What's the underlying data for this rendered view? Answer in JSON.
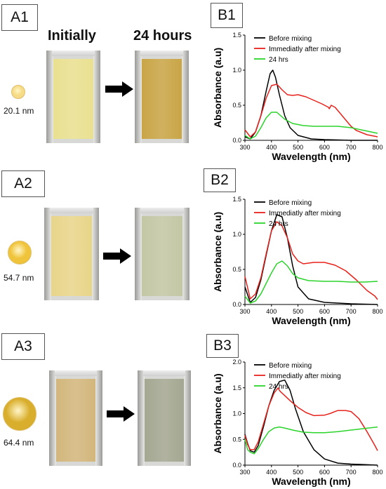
{
  "headers": {
    "initially": "Initially",
    "after": "24 hours"
  },
  "rows": [
    {
      "panel_a": "A1",
      "size": "20.1 nm",
      "initial_color": "#e9e090",
      "final_color": "#c9a546",
      "dot_color": "#f6dc86"
    },
    {
      "panel_a": "A2",
      "size": "54.7 nm",
      "initial_color": "#e8d58a",
      "final_color": "#c3c7a4",
      "dot_color": "#f0c43a"
    },
    {
      "panel_a": "A3",
      "size": "64.4 nm",
      "initial_color": "#d2b67c",
      "final_color": "#a4a791",
      "dot_color": "#d9ae2c"
    }
  ],
  "chart_data": [
    {
      "type": "line",
      "panel": "B1",
      "xlabel": "Wavelength (nm)",
      "ylabel": "Absorbance (a.u)",
      "xlim": [
        300,
        800
      ],
      "ylim": [
        0,
        1.5
      ],
      "xticks": [
        "300",
        "400",
        "500",
        "600",
        "700",
        "800"
      ],
      "yticks": [
        "0.0",
        "0.5",
        "1.0",
        "1.5"
      ],
      "legend_position": "top-right",
      "series": [
        {
          "name": "Before mixing",
          "color": "#000000",
          "x": [
            300,
            320,
            340,
            360,
            380,
            395,
            405,
            415,
            430,
            450,
            470,
            500,
            550,
            600,
            700,
            800
          ],
          "y": [
            0.05,
            0.02,
            0.12,
            0.35,
            0.7,
            0.95,
            1.0,
            0.9,
            0.65,
            0.35,
            0.18,
            0.07,
            0.02,
            0.01,
            0.0,
            0.0
          ]
        },
        {
          "name": "Immediatly after mixing",
          "color": "#e8211b",
          "x": [
            300,
            320,
            340,
            360,
            380,
            400,
            420,
            440,
            460,
            480,
            500,
            530,
            560,
            590,
            615,
            618,
            625,
            640,
            660,
            680,
            700,
            720,
            760,
            800
          ],
          "y": [
            0.15,
            0.05,
            0.12,
            0.35,
            0.6,
            0.78,
            0.8,
            0.72,
            0.65,
            0.64,
            0.65,
            0.62,
            0.57,
            0.52,
            0.47,
            0.45,
            0.5,
            0.47,
            0.38,
            0.29,
            0.2,
            0.14,
            0.08,
            0.05
          ]
        },
        {
          "name": "24 hrs",
          "color": "#2ad42a",
          "x": [
            300,
            320,
            340,
            360,
            380,
            400,
            420,
            450,
            480,
            520,
            560,
            600,
            650,
            700,
            750,
            800
          ],
          "y": [
            0.07,
            0.02,
            0.06,
            0.18,
            0.32,
            0.4,
            0.4,
            0.3,
            0.24,
            0.21,
            0.2,
            0.2,
            0.2,
            0.18,
            0.14,
            0.1
          ]
        }
      ]
    },
    {
      "type": "line",
      "panel": "B2",
      "xlabel": "Wavelength (nm)",
      "ylabel": "Absorbance (a.u)",
      "xlim": [
        300,
        800
      ],
      "ylim": [
        0,
        1.5
      ],
      "xticks": [
        "300",
        "400",
        "500",
        "600",
        "700",
        "800"
      ],
      "yticks": [
        "0.0",
        "0.5",
        "1.0",
        "1.5"
      ],
      "legend_position": "top-right",
      "series": [
        {
          "name": "Before mixing",
          "color": "#000000",
          "x": [
            300,
            320,
            340,
            360,
            380,
            400,
            420,
            440,
            460,
            480,
            500,
            540,
            600,
            700,
            800
          ],
          "y": [
            0.25,
            0.03,
            0.1,
            0.35,
            0.7,
            1.05,
            1.28,
            1.25,
            0.95,
            0.55,
            0.25,
            0.08,
            0.03,
            0.01,
            0.0
          ]
        },
        {
          "name": "Immediatly after mixing",
          "color": "#e8211b",
          "x": [
            300,
            320,
            340,
            360,
            380,
            400,
            420,
            440,
            460,
            480,
            500,
            520,
            560,
            600,
            640,
            680,
            720,
            760,
            790,
            800
          ],
          "y": [
            0.4,
            0.08,
            0.15,
            0.38,
            0.72,
            1.05,
            1.18,
            1.12,
            0.95,
            0.72,
            0.62,
            0.58,
            0.6,
            0.6,
            0.56,
            0.48,
            0.35,
            0.2,
            0.12,
            0.07
          ]
        },
        {
          "name": "24 hrs",
          "color": "#2ad42a",
          "x": [
            300,
            320,
            340,
            360,
            380,
            400,
            420,
            440,
            460,
            480,
            500,
            540,
            600,
            650,
            700,
            750,
            800
          ],
          "y": [
            0.12,
            0.02,
            0.05,
            0.15,
            0.3,
            0.45,
            0.58,
            0.62,
            0.55,
            0.44,
            0.38,
            0.34,
            0.33,
            0.33,
            0.32,
            0.32,
            0.33
          ]
        }
      ]
    },
    {
      "type": "line",
      "panel": "B3",
      "xlabel": "Wavelength (nm)",
      "ylabel": "Absorbance (a.u)",
      "xlim": [
        300,
        800
      ],
      "ylim": [
        0,
        2.0
      ],
      "xticks": [
        "300",
        "400",
        "500",
        "600",
        "700",
        "800"
      ],
      "yticks": [
        "0.0",
        "0.5",
        "1.0",
        "1.5",
        "2.0"
      ],
      "legend_position": "top-right",
      "series": [
        {
          "name": "Before mixing",
          "color": "#000000",
          "x": [
            300,
            310,
            320,
            335,
            350,
            370,
            390,
            410,
            430,
            450,
            470,
            490,
            520,
            560,
            600,
            650,
            700,
            800
          ],
          "y": [
            0.6,
            0.42,
            0.28,
            0.25,
            0.38,
            0.75,
            1.15,
            1.45,
            1.62,
            1.65,
            1.45,
            1.1,
            0.65,
            0.3,
            0.12,
            0.04,
            0.02,
            0.0
          ]
        },
        {
          "name": "Immediatly after mixing",
          "color": "#e8211b",
          "x": [
            300,
            310,
            320,
            335,
            350,
            370,
            390,
            410,
            425,
            430,
            435,
            450,
            470,
            500,
            530,
            560,
            600,
            620,
            650,
            680,
            700,
            730,
            760,
            790,
            800
          ],
          "y": [
            0.58,
            0.4,
            0.3,
            0.3,
            0.45,
            0.8,
            1.15,
            1.4,
            1.5,
            1.45,
            1.42,
            1.35,
            1.25,
            1.12,
            1.02,
            0.96,
            0.97,
            1.0,
            1.06,
            1.06,
            1.04,
            0.9,
            0.65,
            0.38,
            0.28
          ]
        },
        {
          "name": "24 hrs",
          "color": "#2ad42a",
          "x": [
            300,
            310,
            320,
            335,
            350,
            370,
            390,
            410,
            430,
            450,
            480,
            520,
            560,
            600,
            650,
            700,
            750,
            800
          ],
          "y": [
            0.5,
            0.3,
            0.25,
            0.22,
            0.32,
            0.5,
            0.65,
            0.72,
            0.74,
            0.72,
            0.68,
            0.64,
            0.63,
            0.63,
            0.65,
            0.68,
            0.71,
            0.74
          ]
        }
      ]
    }
  ]
}
